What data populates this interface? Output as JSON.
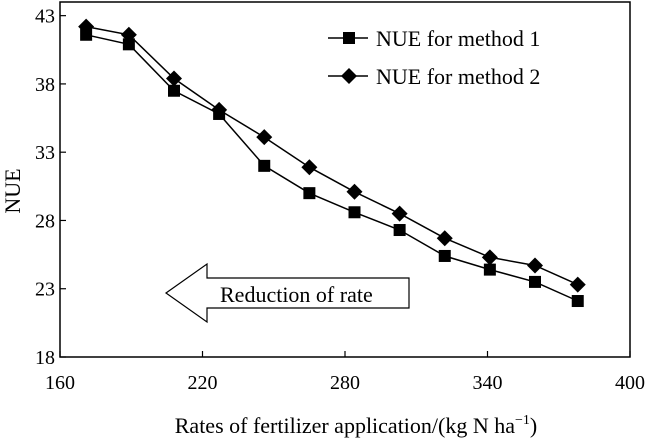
{
  "chart_data": {
    "type": "line",
    "title": "",
    "xlabel": "Rates of fertilizer application/(kg N ha",
    "xlabel_sup": "−1",
    "xlabel_end": ")",
    "ylabel": "NUE",
    "xlim": [
      160,
      400
    ],
    "ylim": [
      18,
      44
    ],
    "xticks": [
      "160",
      "220",
      "280",
      "340",
      "400"
    ],
    "yticks": [
      "18",
      "23",
      "28",
      "33",
      "38",
      "43"
    ],
    "grid": false,
    "legend_position": "top-right",
    "x": [
      171,
      189,
      208,
      227,
      246,
      265,
      284,
      303,
      322,
      341,
      360,
      378
    ],
    "series": [
      {
        "name": "NUE for method 1",
        "marker": "square",
        "values": [
          41.6,
          40.9,
          37.5,
          35.8,
          32.0,
          30.0,
          28.6,
          27.3,
          25.4,
          24.4,
          23.5,
          22.1
        ]
      },
      {
        "name": "NUE for method 2",
        "marker": "diamond",
        "values": [
          42.2,
          41.6,
          38.4,
          36.1,
          34.1,
          31.9,
          30.1,
          28.5,
          26.7,
          25.3,
          24.7,
          23.3
        ]
      }
    ],
    "annotations": [
      {
        "text": "Reduction of rate",
        "shape": "left-arrow"
      }
    ]
  }
}
